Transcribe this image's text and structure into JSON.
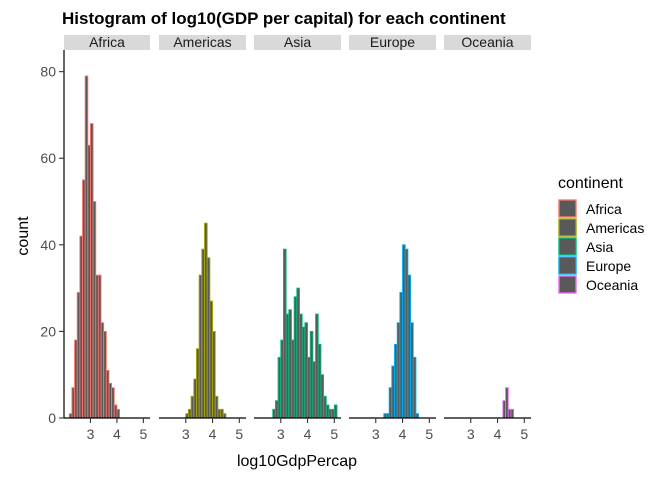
{
  "chart_data": {
    "type": "bar",
    "title": "Histogram of log10(GDP per capital) for each continent",
    "xlabel": "log10GdpPercap",
    "ylabel": "count",
    "xlim": [
      2.0,
      5.25
    ],
    "ylim": [
      0,
      85
    ],
    "x_ticks": [
      3,
      4,
      5
    ],
    "x_tick_labels": [
      "3",
      "4",
      "5"
    ],
    "y_ticks": [
      0,
      20,
      40,
      60,
      80
    ],
    "y_tick_labels": [
      "0",
      "20",
      "40",
      "60",
      "80"
    ],
    "grid": false,
    "legend": {
      "title": "continent",
      "position": "right",
      "entries": [
        "Africa",
        "Americas",
        "Asia",
        "Europe",
        "Oceania"
      ]
    },
    "bin_start": 2.0,
    "bin_width": 0.1,
    "fill_color": "#595959",
    "series": [
      {
        "name": "Africa",
        "color": "#f8766d",
        "values": [
          0,
          0,
          1,
          7,
          18,
          29,
          42,
          55,
          79,
          63,
          68,
          50,
          33,
          33,
          22,
          20,
          11,
          8,
          7,
          3,
          2,
          0,
          0,
          0,
          0,
          0,
          0,
          0,
          0,
          0,
          0,
          0
        ]
      },
      {
        "name": "Americas",
        "color": "#a3a500",
        "values": [
          0,
          0,
          0,
          0,
          0,
          0,
          0,
          0,
          0,
          0,
          1,
          2,
          5,
          9,
          16,
          33,
          39,
          45,
          37,
          27,
          20,
          5,
          2,
          2,
          1,
          0,
          0,
          0,
          0,
          0,
          0,
          0
        ]
      },
      {
        "name": "Asia",
        "color": "#00bf7d",
        "values": [
          0,
          0,
          0,
          0,
          0,
          0,
          0,
          2,
          4,
          14,
          18,
          39,
          24,
          25,
          18,
          28,
          30,
          24,
          21,
          22,
          14,
          20,
          13,
          24,
          17,
          10,
          5,
          3,
          2,
          2,
          3,
          0
        ]
      },
      {
        "name": "Europe",
        "color": "#00b0f6",
        "values": [
          0,
          0,
          0,
          0,
          0,
          0,
          0,
          0,
          0,
          0,
          0,
          0,
          0,
          1,
          1,
          7,
          12,
          17,
          22,
          29,
          40,
          39,
          33,
          22,
          14,
          1,
          0,
          0,
          0,
          0,
          0,
          0
        ]
      },
      {
        "name": "Oceania",
        "color": "#e76bf3",
        "values": [
          0,
          0,
          0,
          0,
          0,
          0,
          0,
          0,
          0,
          0,
          0,
          0,
          0,
          0,
          0,
          0,
          0,
          0,
          0,
          0,
          0,
          0,
          4,
          7,
          2,
          2,
          0,
          0,
          0,
          0,
          0,
          0
        ]
      }
    ]
  }
}
